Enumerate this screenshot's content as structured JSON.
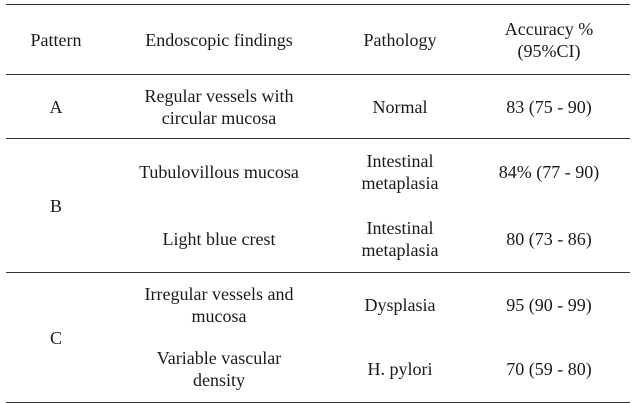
{
  "headers": {
    "pattern": "Pattern",
    "findings": "Endoscopic findings",
    "pathology": "Pathology",
    "accuracy_line1": "Accuracy %",
    "accuracy_line2": "(95%CI)"
  },
  "groups": [
    {
      "pattern": "A",
      "rows": [
        {
          "findings_line1": "Regular vessels with",
          "findings_line2": "circular mucosa",
          "pathology_line1": "Normal",
          "pathology_line2": "",
          "accuracy": "83 (75 - 90)"
        }
      ]
    },
    {
      "pattern": "B",
      "rows": [
        {
          "findings_line1": "Tubulovillous mucosa",
          "findings_line2": "",
          "pathology_line1": "Intestinal",
          "pathology_line2": "metaplasia",
          "accuracy": "84% (77 - 90)"
        },
        {
          "findings_line1": "Light blue crest",
          "findings_line2": "",
          "pathology_line1": "Intestinal",
          "pathology_line2": "metaplasia",
          "accuracy": "80 (73 - 86)"
        }
      ]
    },
    {
      "pattern": "C",
      "rows": [
        {
          "findings_line1": "Irregular vessels and",
          "findings_line2": "mucosa",
          "pathology_line1": "Dysplasia",
          "pathology_line2": "",
          "accuracy": "95 (90 - 99)"
        },
        {
          "findings_line1": "Variable vascular",
          "findings_line2": "density",
          "pathology_line1": "H. pylori",
          "pathology_line2": "",
          "accuracy": "70 (59 - 80)"
        }
      ]
    }
  ]
}
